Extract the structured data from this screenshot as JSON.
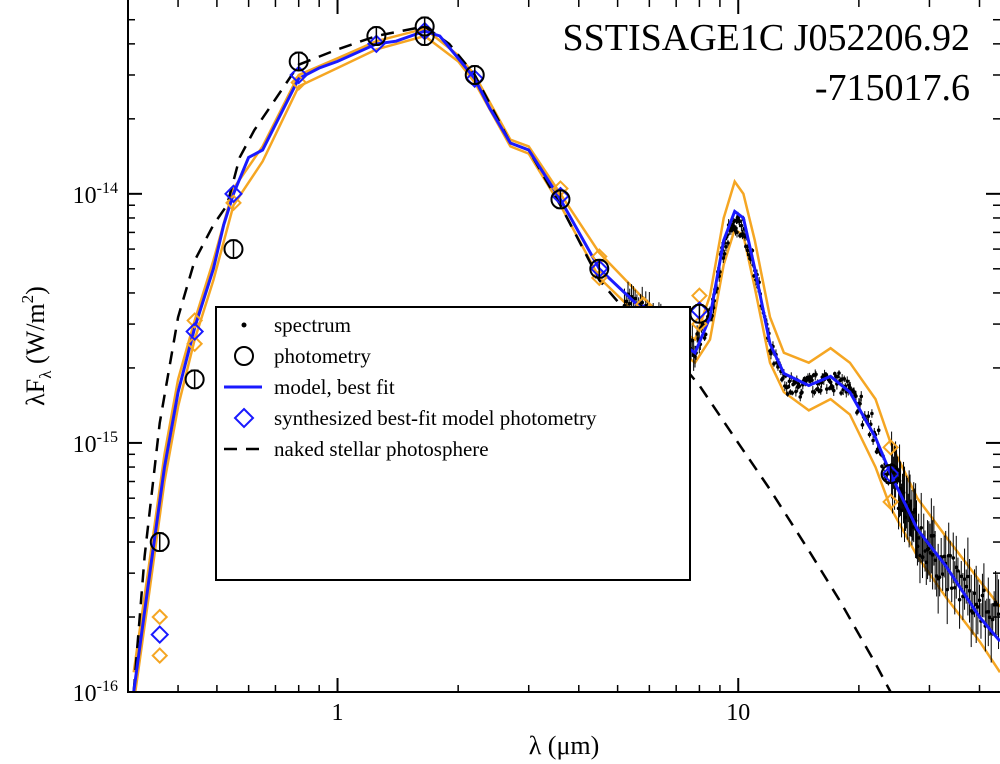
{
  "chart_data": {
    "type": "line",
    "title_lines": [
      "SSTISAGE1C J052206.92",
      "-715017.6"
    ],
    "xlabel": "λ (μm)",
    "ylabel": "λF_λ (W/m^2)",
    "x_scale": "log",
    "y_scale": "log",
    "xlim": [
      0.3,
      45
    ],
    "ylim": [
      1e-16,
      6e-14
    ],
    "x_ticks": [
      {
        "value": 1,
        "label": "1"
      },
      {
        "value": 10,
        "label": "10"
      }
    ],
    "y_ticks": [
      {
        "value": 1e-16,
        "label": "10",
        "exp": "-16"
      },
      {
        "value": 1e-15,
        "label": "10",
        "exp": "-15"
      },
      {
        "value": 1e-14,
        "label": "10",
        "exp": "-14"
      }
    ],
    "legend": {
      "placement": "lower-left",
      "entries": [
        {
          "label": "spectrum",
          "symbol": "dot",
          "color": "#000000"
        },
        {
          "label": "photometry",
          "symbol": "circle",
          "color": "#000000"
        },
        {
          "label": "model, best fit",
          "symbol": "line",
          "color": "#1a1aff"
        },
        {
          "label": "synthesized best-fit model photometry",
          "symbol": "diamond",
          "color": "#1a1aff"
        },
        {
          "label": "naked stellar photosphere",
          "symbol": "dashed",
          "color": "#000000"
        }
      ]
    },
    "colors": {
      "model": "#1a1aff",
      "model_range": "#f5a623",
      "photosphere": "#000000",
      "photometry": "#000000",
      "spectrum": "#000000"
    },
    "series": [
      {
        "role": "model",
        "style": "line",
        "points": [
          [
            0.31,
            1e-16
          ],
          [
            0.34,
            3e-16
          ],
          [
            0.37,
            8e-16
          ],
          [
            0.4,
            1.6e-15
          ],
          [
            0.44,
            2.9e-15
          ],
          [
            0.49,
            5e-15
          ],
          [
            0.52,
            7.5e-15
          ],
          [
            0.55,
            1e-14
          ],
          [
            0.6,
            1.4e-14
          ],
          [
            0.65,
            1.5e-14
          ],
          [
            0.8,
            2.9e-14
          ],
          [
            0.9,
            3.2e-14
          ],
          [
            1.0,
            3.4e-14
          ],
          [
            1.25,
            4e-14
          ],
          [
            1.4,
            4.1e-14
          ],
          [
            1.65,
            4.5e-14
          ],
          [
            1.8,
            4.3e-14
          ],
          [
            2.0,
            3.5e-14
          ],
          [
            2.2,
            2.9e-14
          ],
          [
            2.4,
            2.2e-14
          ],
          [
            2.7,
            1.6e-14
          ],
          [
            3.0,
            1.5e-14
          ],
          [
            3.6,
            9.5e-15
          ],
          [
            4.5,
            5e-15
          ],
          [
            5.8,
            3.4e-15
          ],
          [
            7.0,
            2.6e-15
          ],
          [
            7.8,
            2.3e-15
          ],
          [
            8.5,
            3.2e-15
          ],
          [
            9.2,
            6.5e-15
          ],
          [
            9.8,
            8.5e-15
          ],
          [
            10.3,
            8e-15
          ],
          [
            11.0,
            5e-15
          ],
          [
            12.0,
            2.5e-15
          ],
          [
            13.0,
            1.9e-15
          ],
          [
            15.0,
            1.7e-15
          ],
          [
            17.0,
            1.85e-15
          ],
          [
            19.0,
            1.6e-15
          ],
          [
            22.0,
            1.05e-15
          ],
          [
            24.0,
            7.5e-16
          ],
          [
            28.0,
            4.5e-16
          ],
          [
            33.0,
            3.2e-16
          ],
          [
            40.0,
            2e-16
          ],
          [
            45.0,
            1.6e-16
          ]
        ]
      },
      {
        "role": "model_upper",
        "style": "line",
        "points": [
          [
            0.31,
            1.2e-16
          ],
          [
            0.34,
            3.4e-16
          ],
          [
            0.37,
            9e-16
          ],
          [
            0.4,
            1.8e-15
          ],
          [
            0.44,
            3.1e-15
          ],
          [
            0.49,
            5.4e-15
          ],
          [
            0.55,
            1.05e-14
          ],
          [
            0.65,
            1.55e-14
          ],
          [
            0.8,
            3e-14
          ],
          [
            1.0,
            3.5e-14
          ],
          [
            1.25,
            4.1e-14
          ],
          [
            1.65,
            4.6e-14
          ],
          [
            2.0,
            3.6e-14
          ],
          [
            2.2,
            3e-14
          ],
          [
            2.7,
            1.65e-14
          ],
          [
            3.0,
            1.55e-14
          ],
          [
            3.6,
            1e-14
          ],
          [
            4.5,
            5.8e-15
          ],
          [
            5.8,
            3.8e-15
          ],
          [
            7.0,
            2.9e-15
          ],
          [
            7.8,
            2.6e-15
          ],
          [
            8.5,
            3.9e-15
          ],
          [
            9.2,
            8e-15
          ],
          [
            9.8,
            1.12e-14
          ],
          [
            10.3,
            1e-14
          ],
          [
            11.0,
            6.5e-15
          ],
          [
            12.0,
            3.2e-15
          ],
          [
            13.0,
            2.3e-15
          ],
          [
            15.0,
            2.1e-15
          ],
          [
            17.0,
            2.4e-15
          ],
          [
            19.0,
            2.1e-15
          ],
          [
            22.0,
            1.5e-15
          ],
          [
            24.0,
            1e-15
          ],
          [
            28.0,
            6e-16
          ],
          [
            33.0,
            4.2e-16
          ],
          [
            40.0,
            2.8e-16
          ],
          [
            45.0,
            2.2e-16
          ]
        ]
      },
      {
        "role": "model_lower",
        "style": "line",
        "points": [
          [
            0.31,
            9e-17
          ],
          [
            0.34,
            2.6e-16
          ],
          [
            0.37,
            7e-16
          ],
          [
            0.4,
            1.4e-15
          ],
          [
            0.44,
            2.6e-15
          ],
          [
            0.49,
            4.5e-15
          ],
          [
            0.55,
            9e-15
          ],
          [
            0.65,
            1.35e-14
          ],
          [
            0.8,
            2.7e-14
          ],
          [
            1.0,
            3.2e-14
          ],
          [
            1.25,
            3.8e-14
          ],
          [
            1.65,
            4.3e-14
          ],
          [
            2.0,
            3.4e-14
          ],
          [
            2.2,
            2.8e-14
          ],
          [
            2.7,
            1.55e-14
          ],
          [
            3.0,
            1.45e-14
          ],
          [
            3.6,
            9e-15
          ],
          [
            4.5,
            4.6e-15
          ],
          [
            5.8,
            3.1e-15
          ],
          [
            7.0,
            2.4e-15
          ],
          [
            7.8,
            2.1e-15
          ],
          [
            8.5,
            2.6e-15
          ],
          [
            9.2,
            5.2e-15
          ],
          [
            9.8,
            7.2e-15
          ],
          [
            10.3,
            6.8e-15
          ],
          [
            11.0,
            4.2e-15
          ],
          [
            12.0,
            2.1e-15
          ],
          [
            13.0,
            1.6e-15
          ],
          [
            15.0,
            1.35e-15
          ],
          [
            17.0,
            1.5e-15
          ],
          [
            19.0,
            1.3e-15
          ],
          [
            22.0,
            8e-16
          ],
          [
            24.0,
            5.5e-16
          ],
          [
            28.0,
            3.5e-16
          ],
          [
            33.0,
            2.4e-16
          ],
          [
            40.0,
            1.6e-16
          ],
          [
            45.0,
            1.2e-16
          ]
        ]
      },
      {
        "role": "photosphere",
        "style": "dashed",
        "points": [
          [
            0.31,
            1e-16
          ],
          [
            0.33,
            3.5e-16
          ],
          [
            0.36,
            1.2e-15
          ],
          [
            0.4,
            3.2e-15
          ],
          [
            0.44,
            5.4e-15
          ],
          [
            0.49,
            7.5e-15
          ],
          [
            0.53,
            9e-15
          ],
          [
            0.57,
            1.4e-14
          ],
          [
            0.62,
            1.8e-14
          ],
          [
            0.7,
            2.4e-14
          ],
          [
            0.8,
            3.3e-14
          ],
          [
            1.0,
            3.8e-14
          ],
          [
            1.25,
            4.3e-14
          ],
          [
            1.65,
            4.7e-14
          ],
          [
            1.9,
            4e-14
          ],
          [
            2.2,
            3e-14
          ],
          [
            2.7,
            1.6e-14
          ],
          [
            3.0,
            1.5e-14
          ],
          [
            3.6,
            9e-15
          ],
          [
            4.0,
            6.5e-15
          ],
          [
            4.5,
            4.5e-15
          ],
          [
            5.0,
            3.7e-15
          ],
          [
            6.0,
            2.8e-15
          ],
          [
            7.0,
            2.2e-15
          ],
          [
            8.0,
            1.7e-15
          ],
          [
            10.0,
            1e-15
          ],
          [
            12.0,
            6.5e-16
          ],
          [
            15.0,
            3.7e-16
          ],
          [
            18.0,
            2.3e-16
          ],
          [
            22.0,
            1.3e-16
          ],
          [
            24.0,
            1e-16
          ]
        ]
      },
      {
        "role": "photometry",
        "style": "circle",
        "points": [
          [
            0.36,
            4e-16
          ],
          [
            0.44,
            1.8e-15
          ],
          [
            0.55,
            6e-15
          ],
          [
            0.8,
            3.4e-14
          ],
          [
            1.25,
            4.3e-14
          ],
          [
            1.65,
            4.7e-14
          ],
          [
            1.65,
            4.3e-14
          ],
          [
            2.2,
            3e-14
          ],
          [
            3.6,
            9.5e-15
          ],
          [
            4.5,
            5e-15
          ],
          [
            5.8,
            3.1e-15
          ],
          [
            8.0,
            3.3e-15
          ],
          [
            24.0,
            7.5e-16
          ]
        ]
      },
      {
        "role": "synthesized",
        "style": "diamond",
        "points": [
          [
            0.36,
            1.7e-16
          ],
          [
            0.44,
            2.8e-15
          ],
          [
            0.55,
            1e-14
          ],
          [
            0.8,
            3e-14
          ],
          [
            1.25,
            4e-14
          ],
          [
            1.65,
            4.5e-14
          ],
          [
            2.2,
            2.9e-14
          ],
          [
            3.6,
            9.8e-15
          ],
          [
            4.5,
            5e-15
          ],
          [
            5.8,
            3.3e-15
          ],
          [
            8.0,
            3.4e-15
          ],
          [
            24.0,
            7.5e-16
          ]
        ]
      },
      {
        "role": "synthesized_range",
        "style": "diamond-open",
        "points": [
          [
            0.36,
            2e-16
          ],
          [
            0.36,
            1.4e-16
          ],
          [
            0.44,
            3.1e-15
          ],
          [
            0.44,
            2.5e-15
          ],
          [
            0.55,
            9.2e-15
          ],
          [
            0.8,
            2.8e-14
          ],
          [
            3.6,
            1.05e-14
          ],
          [
            4.5,
            5.6e-15
          ],
          [
            4.5,
            4.6e-15
          ],
          [
            5.8,
            3.6e-15
          ],
          [
            8.0,
            3.9e-15
          ],
          [
            8.0,
            3e-15
          ],
          [
            24.0,
            9.6e-16
          ],
          [
            24.0,
            5.8e-16
          ]
        ]
      }
    ],
    "spectrum_anchors": [
      [
        5.2,
        3.9e-15
      ],
      [
        6.0,
        3.2e-15
      ],
      [
        7.0,
        2.7e-15
      ],
      [
        7.8,
        2.4e-15
      ],
      [
        8.5,
        3.2e-15
      ],
      [
        9.0,
        5.2e-15
      ],
      [
        9.5,
        7e-15
      ],
      [
        9.9,
        7.6e-15
      ],
      [
        10.3,
        7.2e-15
      ],
      [
        11.0,
        5e-15
      ],
      [
        12.0,
        2.4e-15
      ],
      [
        13.0,
        1.75e-15
      ],
      [
        14.0,
        1.65e-15
      ],
      [
        15.0,
        1.7e-15
      ],
      [
        16.0,
        1.75e-15
      ],
      [
        17.0,
        1.8e-15
      ],
      [
        18.5,
        1.7e-15
      ],
      [
        20.0,
        1.4e-15
      ],
      [
        22.0,
        1.05e-15
      ],
      [
        24.0,
        7.6e-16
      ],
      [
        26.0,
        5.5e-16
      ],
      [
        28.0,
        4.3e-16
      ],
      [
        31.0,
        3.5e-16
      ],
      [
        35.0,
        2.8e-16
      ],
      [
        40.0,
        2.2e-16
      ],
      [
        45.0,
        1.9e-16
      ]
    ]
  }
}
